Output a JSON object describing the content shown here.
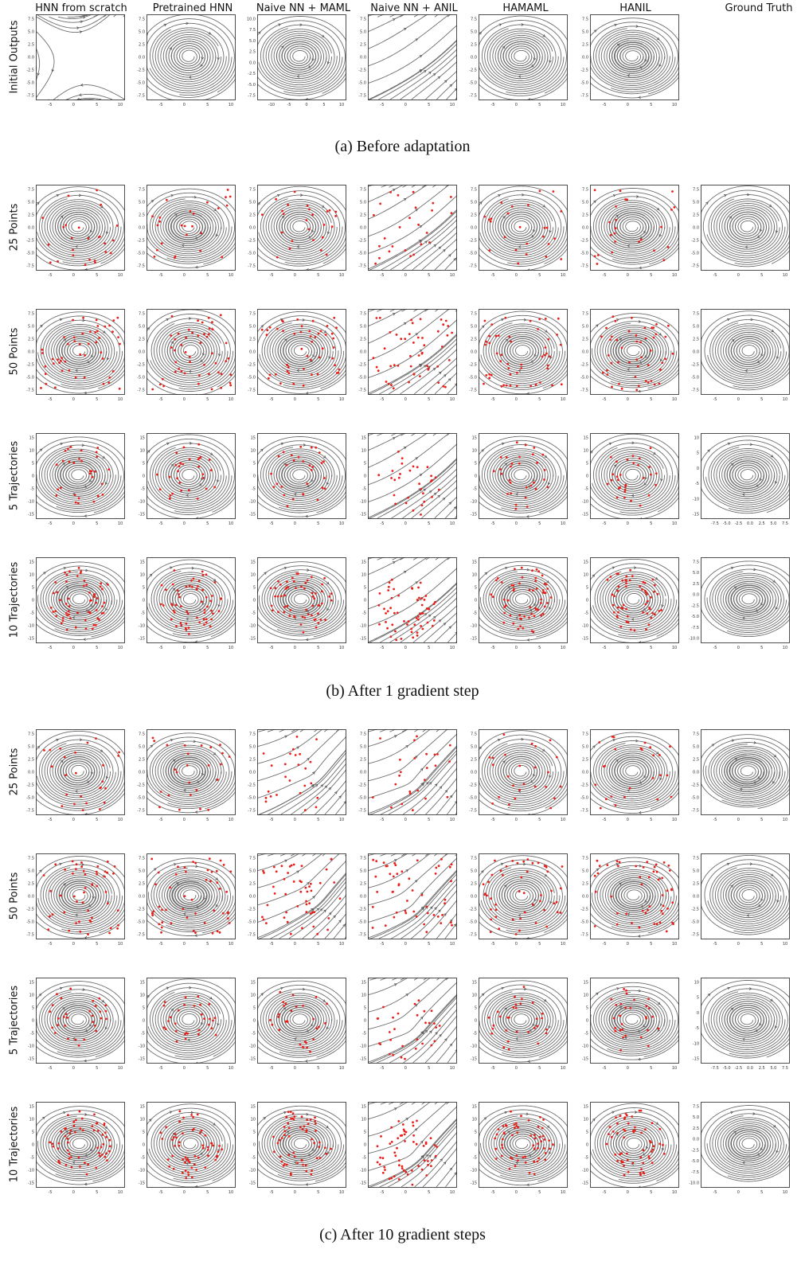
{
  "columns": [
    "HNN from scratch",
    "Pretrained HNN",
    "Naive NN + MAML",
    "Naive NN + ANIL",
    "HAMAML",
    "HANIL",
    "Ground Truth"
  ],
  "captions": {
    "a": "(a) Before adaptation",
    "b": "(b) After 1 gradient step",
    "c": "(c) After 10 gradient steps"
  },
  "colors": {
    "stream": "#6e6e6e",
    "arrow": "#555555",
    "data_point": "#e8201a",
    "axes": "#222222"
  },
  "sections": [
    {
      "id": "a",
      "rows": [
        {
          "label": "Initial Outputs",
          "setting": "init"
        }
      ]
    },
    {
      "id": "b",
      "rows": [
        {
          "label": "25 Points",
          "setting": "points"
        },
        {
          "label": "50 Points",
          "setting": "points"
        },
        {
          "label": "5 Trajectories",
          "setting": "traj"
        },
        {
          "label": "10 Trajectories",
          "setting": "traj"
        }
      ]
    },
    {
      "id": "c",
      "rows": [
        {
          "label": "25 Points",
          "setting": "points"
        },
        {
          "label": "50 Points",
          "setting": "points"
        },
        {
          "label": "5 Trajectories",
          "setting": "traj"
        },
        {
          "label": "10 Trajectories",
          "setting": "traj"
        }
      ]
    }
  ],
  "chart_data": {
    "type": "streamplot-grid",
    "description_of_panels": "Phase-space streamline plots (q, p) of predicted vector fields; red dots are support data points",
    "axis_ticks": {
      "points_y": [
        "7.5",
        "5.0",
        "2.5",
        "0.0",
        "-2.5",
        "-5.0",
        "-7.5"
      ],
      "points_x": [
        "-5",
        "0",
        "5",
        "10"
      ],
      "traj_y": [
        "15",
        "10",
        "5",
        "0",
        "-5",
        "-10",
        "-15"
      ],
      "traj_x": [
        "-5",
        "0",
        "5",
        "10"
      ],
      "gt_traj5_x": [
        "-7.5",
        "-5.0",
        "-2.5",
        "0.0",
        "2.5",
        "5.0",
        "7.5"
      ],
      "gt_traj5_y": [
        "10",
        "5",
        "0",
        "-5",
        "-10",
        "-15"
      ],
      "gt_traj10_y": [
        "7.5",
        "5.0",
        "2.5",
        "0.0",
        "-2.5",
        "-5.0",
        "-7.5",
        "-10.0"
      ],
      "init_naive_maml_y": [
        "10.0",
        "7.5",
        "5.0",
        "2.5",
        "0.0",
        "-2.5",
        "-5.0",
        "-7.5"
      ],
      "init_naive_maml_x": [
        "-10",
        "-5",
        "0",
        "5",
        "10"
      ]
    },
    "support_points_per_row": {
      "25 Points": 25,
      "50 Points": 50,
      "5 Trajectories": 5,
      "10 Trajectories": 10
    },
    "ground_truth_initial_shown": false
  }
}
